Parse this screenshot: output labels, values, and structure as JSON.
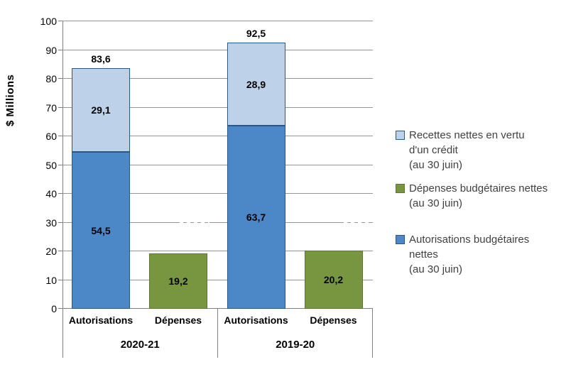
{
  "y_axis": {
    "title": "$ Millions",
    "tick_labels": [
      "0",
      "10",
      "20",
      "30",
      "40",
      "50",
      "60",
      "70",
      "80",
      "90",
      "100"
    ]
  },
  "chart_data": {
    "type": "bar",
    "stacked": true,
    "title": "",
    "ylabel": "$ Millions",
    "xlabel": "",
    "ylim": [
      0,
      100
    ],
    "yticks": [
      0,
      10,
      20,
      30,
      40,
      50,
      60,
      70,
      80,
      90,
      100
    ],
    "grid": true,
    "legend_position": "right",
    "series_names": [
      "Recettes nettes en vertu d'un crédit (au 30 juin)",
      "Dépenses budgétaires nettes (au 30 juin)",
      "Autorisations budgétaires nettes (au 30 juin)"
    ],
    "groups": [
      {
        "label": "2020-21",
        "bars": [
          {
            "category": "Autorisations",
            "total_value": 83.6,
            "total_label": "83,6",
            "segments": [
              {
                "series": "Autorisations budgétaires nettes (au 30 juin)",
                "value": 54.5,
                "label": "54,5",
                "color": "#4C87C8",
                "border": "#2A5783"
              },
              {
                "series": "Recettes nettes en vertu d'un crédit (au 30 juin)",
                "value": 29.1,
                "label": "29,1",
                "color": "#BDD2E9",
                "border": "#2A5783"
              }
            ]
          },
          {
            "category": "Dépenses",
            "segments": [
              {
                "series": "Dépenses budgétaires nettes (au 30 juin)",
                "value": 19.2,
                "label": "19,2",
                "color": "#78953F",
                "border": "#5E7730"
              }
            ]
          }
        ]
      },
      {
        "label": "2019-20",
        "bars": [
          {
            "category": "Autorisations",
            "total_value": 92.5,
            "total_label": "92,5",
            "segments": [
              {
                "series": "Autorisations budgétaires nettes (au 30 juin)",
                "value": 63.7,
                "label": "63,7",
                "color": "#4C87C8",
                "border": "#2A5783"
              },
              {
                "series": "Recettes nettes en vertu d'un crédit (au 30 juin)",
                "value": 28.9,
                "label": "28,9",
                "color": "#BDD2E9",
                "border": "#2A5783"
              }
            ]
          },
          {
            "category": "Dépenses",
            "segments": [
              {
                "series": "Dépenses budgétaires nettes (au 30 juin)",
                "value": 20.2,
                "label": "20,2",
                "color": "#78953F",
                "border": "#5E7730"
              }
            ]
          }
        ]
      }
    ]
  },
  "legend": {
    "items": [
      {
        "color": "#BDD2E9",
        "border": "#2A5783",
        "lines": [
          "Recettes nettes en vertu",
          "d'un crédit",
          "(au 30 juin)"
        ]
      },
      {
        "color": "#78953F",
        "border": "#5E7730",
        "lines": [
          "Dépenses budgétaires nettes",
          "(au 30 juin)"
        ]
      },
      {
        "color": "#4C87C8",
        "border": "#2A5783",
        "lines": [
          "Autorisations budgétaires",
          "nettes",
          "(au 30 juin)"
        ]
      }
    ]
  }
}
